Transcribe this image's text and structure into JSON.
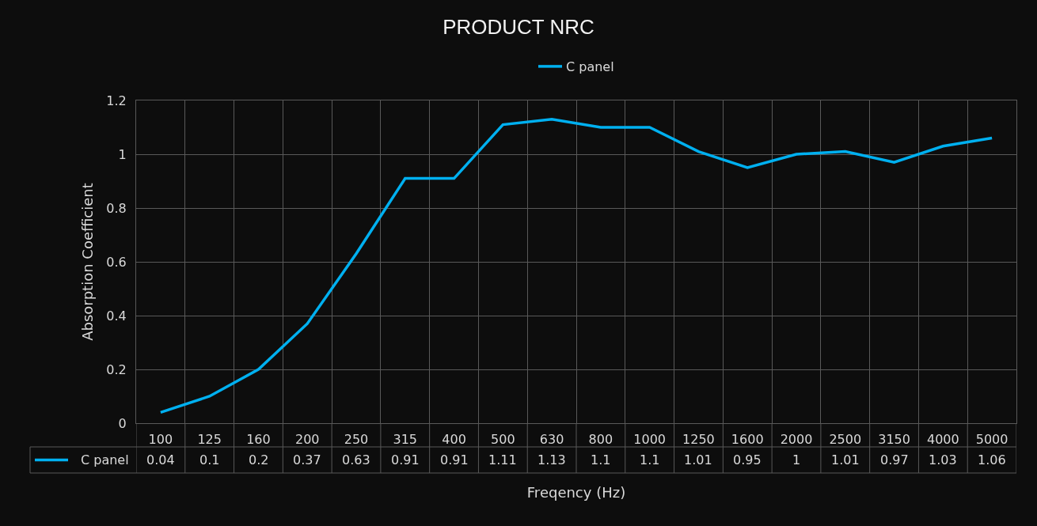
{
  "chart_data": {
    "type": "line",
    "title": "PRODUCT NRC",
    "xlabel": "Freqency (Hz)",
    "ylabel": "Absorption Coefficient",
    "categories": [
      "100",
      "125",
      "160",
      "200",
      "250",
      "315",
      "400",
      "500",
      "630",
      "800",
      "1000",
      "1250",
      "1600",
      "2000",
      "2500",
      "3150",
      "4000",
      "5000"
    ],
    "series": [
      {
        "name": "C panel",
        "color": "#00b0f0",
        "values": [
          0.04,
          0.1,
          0.2,
          0.37,
          0.63,
          0.91,
          0.91,
          1.11,
          1.13,
          1.1,
          1.1,
          1.01,
          0.95,
          1,
          1.01,
          0.97,
          1.03,
          1.06
        ]
      }
    ],
    "ylim": [
      0,
      1.2
    ],
    "yticks": [
      0,
      0.2,
      0.4,
      0.6,
      0.8,
      1,
      1.2
    ],
    "grid": true,
    "legend": "top",
    "data_labels": true,
    "marker": "none",
    "line_style": "solid"
  }
}
